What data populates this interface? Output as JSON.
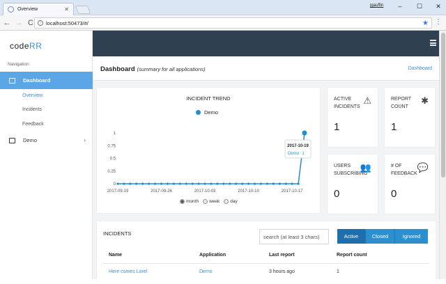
{
  "browser": {
    "tab_title": "Overview",
    "tab_close": "✕",
    "window_user": "jgauffin",
    "window_buttons": [
      "–",
      "☐",
      "✕"
    ],
    "back_glyph": "←",
    "forward_glyph": "→",
    "reload_glyph": "C",
    "url": "localhost:50473/#/",
    "star_glyph": "★",
    "menu_glyph": "⋮",
    "icons": [
      "info-icon",
      "star-icon",
      "menu-icon"
    ]
  },
  "sidebar": {
    "logo_prefix": "code",
    "logo_suffix": "RR",
    "caption": "Navigation",
    "dashboard_label": "Dashboard",
    "sub_items": [
      "Overview",
      "Incidents",
      "Feedback"
    ],
    "demo_label": "Demo",
    "demo_chevron": "›"
  },
  "header": {
    "title": "Dashboard",
    "subtitle": "(summary for all applications)",
    "breadcrumb": "Dashboard"
  },
  "chart": {
    "range_options": [
      "month",
      "week",
      "day"
    ],
    "selected_range": "month",
    "tooltip_date": "2017-10-19",
    "tooltip_series": "Demo",
    "tooltip_value": "1"
  },
  "chart_data": {
    "type": "line",
    "title": "INCIDENT TREND",
    "series": [
      {
        "name": "Demo",
        "color": "#1f8fd4",
        "x": [
          "2017-09-19",
          "2017-09-20",
          "2017-09-21",
          "2017-09-22",
          "2017-09-23",
          "2017-09-24",
          "2017-09-25",
          "2017-09-26",
          "2017-09-27",
          "2017-09-28",
          "2017-09-29",
          "2017-09-30",
          "2017-10-01",
          "2017-10-02",
          "2017-10-03",
          "2017-10-04",
          "2017-10-05",
          "2017-10-06",
          "2017-10-07",
          "2017-10-08",
          "2017-10-09",
          "2017-10-10",
          "2017-10-11",
          "2017-10-12",
          "2017-10-13",
          "2017-10-14",
          "2017-10-15",
          "2017-10-16",
          "2017-10-17",
          "2017-10-18",
          "2017-10-19"
        ],
        "values": [
          0,
          0,
          0,
          0,
          0,
          0,
          0,
          0,
          0,
          0,
          0,
          0,
          0,
          0,
          0,
          0,
          0,
          0,
          0,
          0,
          0,
          0,
          0,
          0,
          0,
          0,
          0,
          0,
          0,
          0,
          1
        ]
      }
    ],
    "x_ticks": [
      "2017-09-19",
      "2017-09-26",
      "2017-10-03",
      "2017-10-10",
      "2017-10-17"
    ],
    "y_ticks": [
      "0",
      "0.25",
      "0.5",
      "0.75",
      "1"
    ],
    "ylim": [
      0,
      1
    ],
    "grid": false
  },
  "stats": {
    "active_incidents": {
      "label": "Active incidents",
      "value": "1",
      "icon": "warning-icon",
      "glyph": "⚠"
    },
    "report_count": {
      "label": "Report count",
      "value": "1",
      "icon": "bug-icon",
      "glyph": "✱"
    },
    "users_subscribing": {
      "label": "Users subscribing",
      "value": "0",
      "icon": "users-icon",
      "glyph": "👥"
    },
    "feedback_count": {
      "label": "# of feedback",
      "value": "0",
      "icon": "comment-icon",
      "glyph": "💬"
    }
  },
  "incidents": {
    "title": "INCIDENTS",
    "search_placeholder": "search (at least 3 chars)",
    "filters": [
      "Active",
      "Closed",
      "Ignored"
    ],
    "active_filter": "Active",
    "columns": [
      "Name",
      "Application",
      "Last report",
      "Report count"
    ],
    "rows": [
      [
        "Here comes Lorel",
        "Demo",
        "3 hours ago",
        "1"
      ]
    ]
  },
  "colors": {
    "accent": "#5aa6e6",
    "topbar": "#2f4050",
    "button": "#2c8fd0",
    "series": "#1f8fd4"
  }
}
